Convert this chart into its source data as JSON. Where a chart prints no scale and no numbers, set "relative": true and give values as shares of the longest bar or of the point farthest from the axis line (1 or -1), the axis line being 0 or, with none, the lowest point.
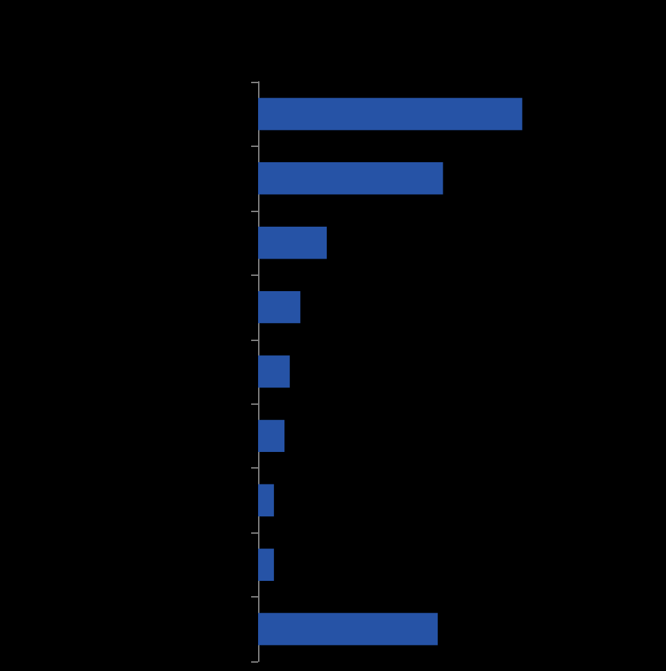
{
  "chart_data": {
    "type": "bar",
    "orientation": "horizontal",
    "relative": true,
    "categories": [
      null,
      null,
      null,
      null,
      null,
      null,
      null,
      null,
      null
    ],
    "values": [
      1,
      0.7,
      0.26,
      0.16,
      0.12,
      0.1,
      0.06,
      0.06,
      0.68
    ],
    "color": "#2653a6"
  }
}
